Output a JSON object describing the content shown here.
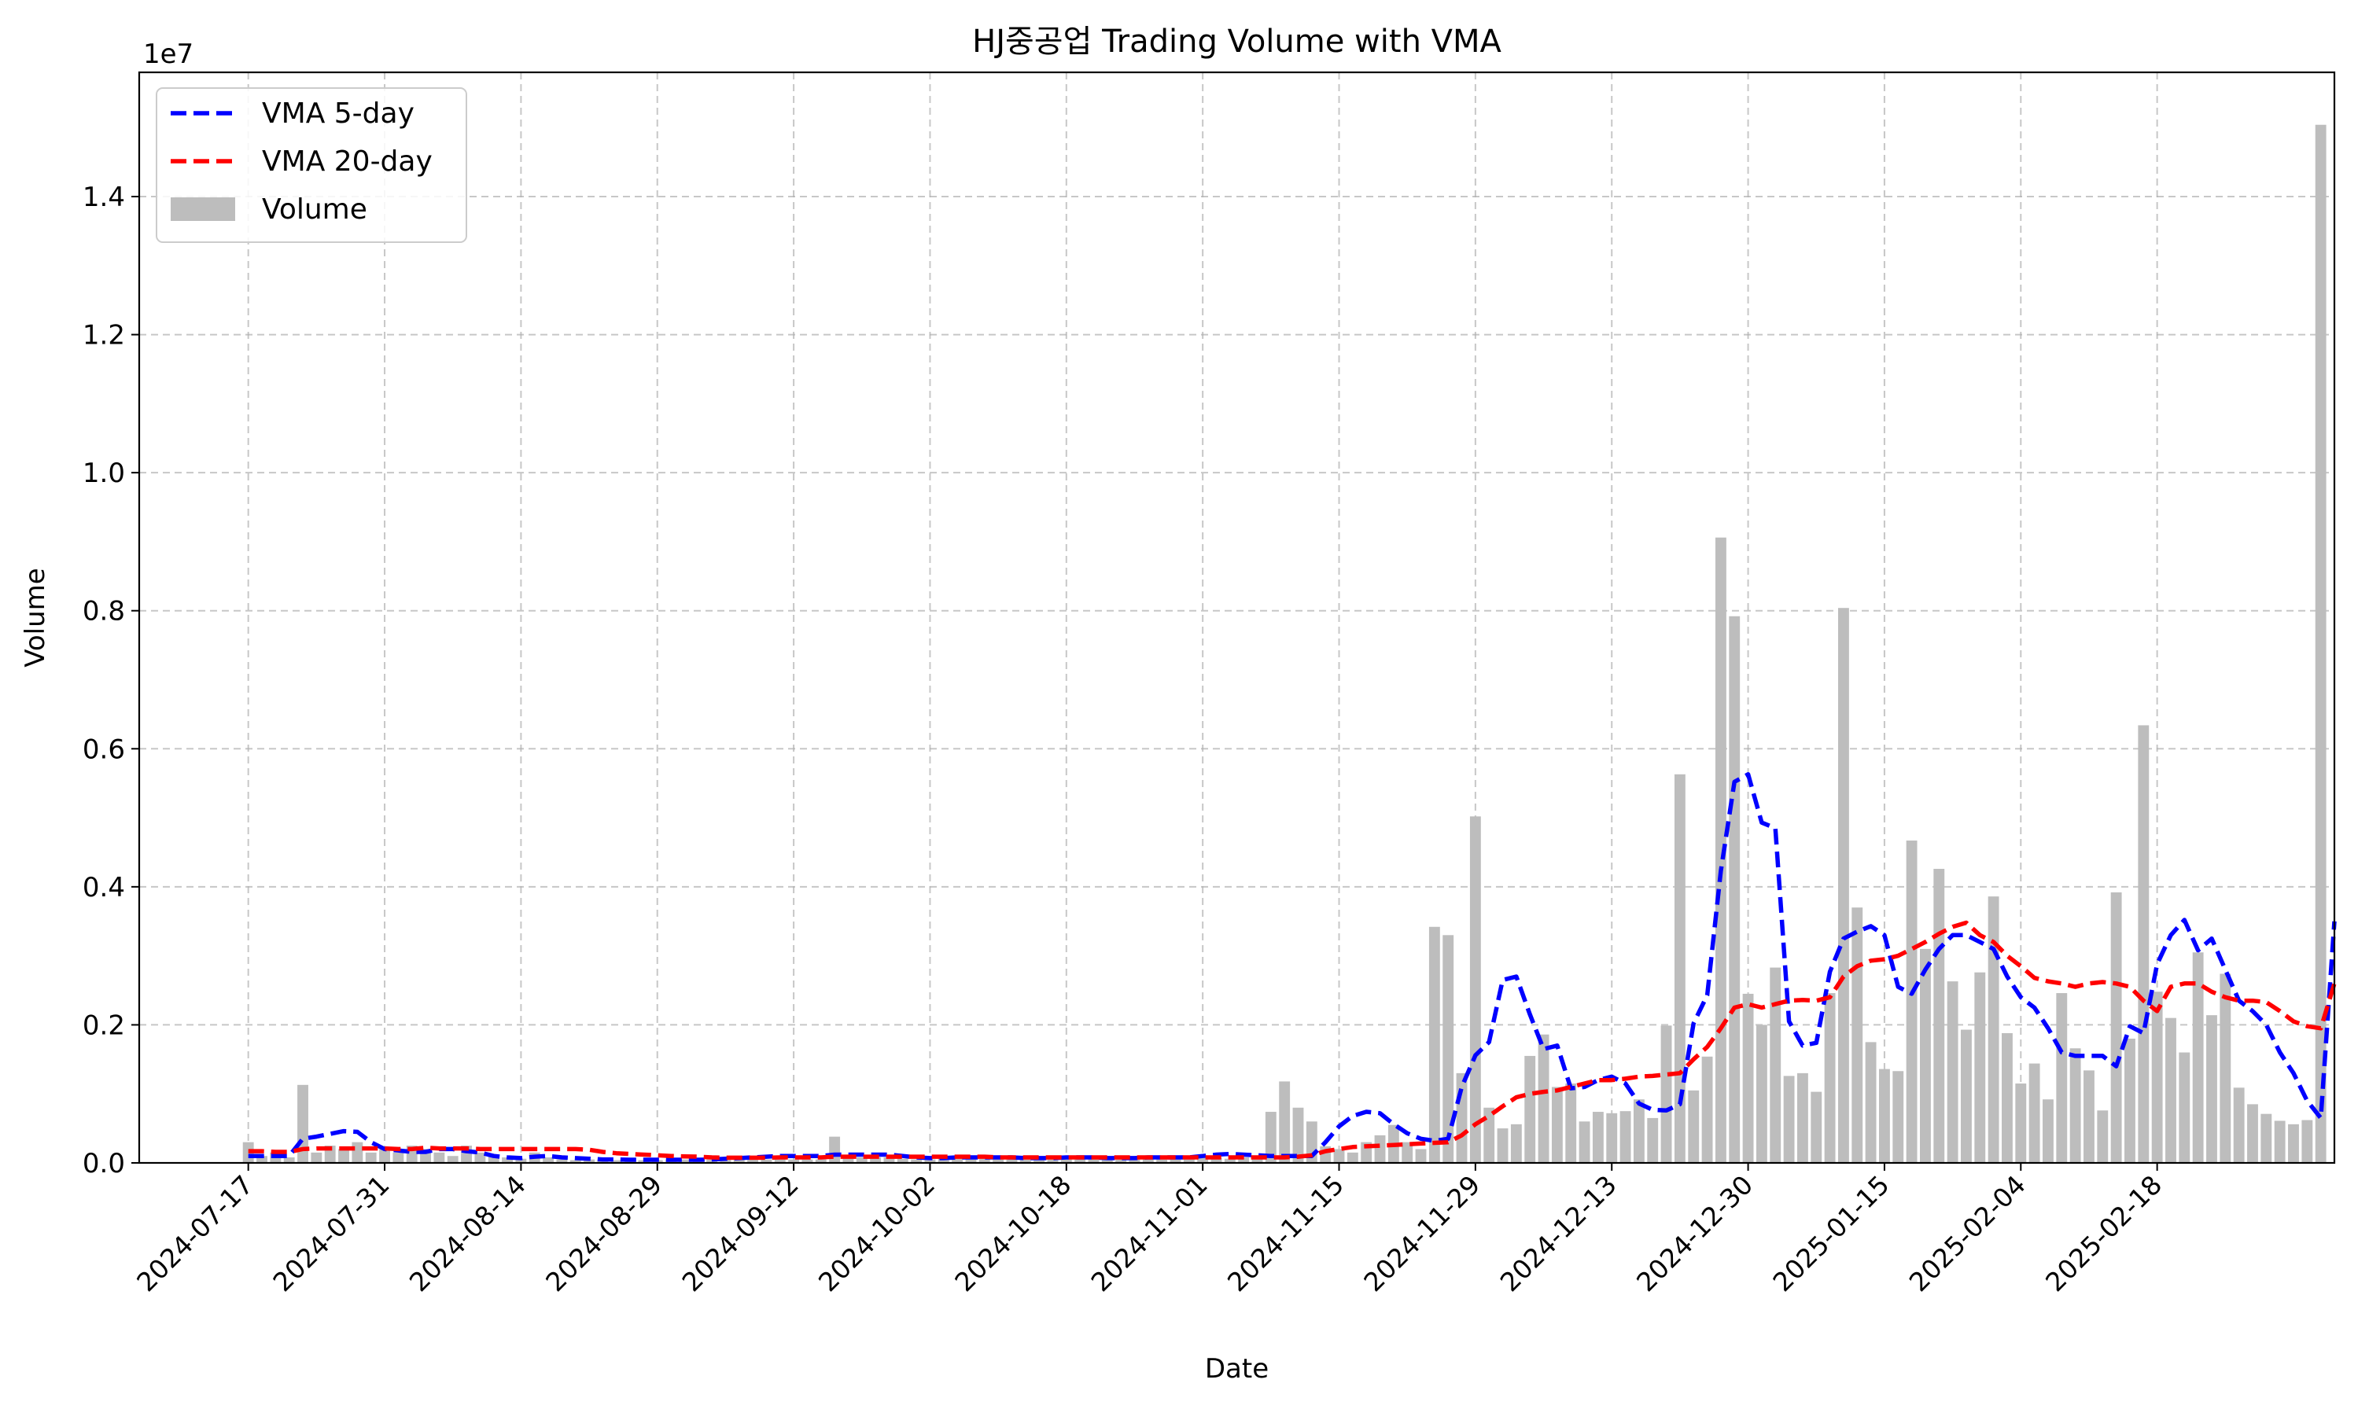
{
  "chart_data": {
    "type": "bar",
    "title": "HJ중공업 Trading Volume with VMA",
    "xlabel": "Date",
    "ylabel": "Volume",
    "y_scale_label": "1e7",
    "ylim": [
      0,
      15800000
    ],
    "y_ticks": [
      0,
      2000000,
      4000000,
      6000000,
      8000000,
      10000000,
      12000000,
      14000000
    ],
    "y_tick_labels": [
      "0.0",
      "0.2",
      "0.4",
      "0.6",
      "0.8",
      "1.0",
      "1.2",
      "1.4"
    ],
    "x_ticks": [
      "2024-07-17",
      "2024-07-31",
      "2024-08-14",
      "2024-08-29",
      "2024-09-12",
      "2024-10-02",
      "2024-10-18",
      "2024-11-01",
      "2024-11-15",
      "2024-11-29",
      "2024-12-13",
      "2024-12-30",
      "2025-01-15",
      "2025-02-04",
      "2025-02-18"
    ],
    "x_tick_index": [
      0,
      10,
      20,
      30,
      40,
      50,
      60,
      70,
      80,
      90,
      100,
      110,
      120,
      130,
      140
    ],
    "x_index_range": [
      -8,
      153
    ],
    "grid": true,
    "legend_position": "top-left",
    "legend": [
      {
        "label": "VMA 5-day",
        "color": "#0000ff",
        "style": "dashed-line"
      },
      {
        "label": "VMA 20-day",
        "color": "#ff0000",
        "style": "dashed-line"
      },
      {
        "label": "Volume",
        "color": "#bdbdbd",
        "style": "bar"
      }
    ],
    "series": [
      {
        "name": "Volume",
        "color": "#bdbdbd",
        "values": [
          300000,
          100000,
          150000,
          80000,
          1130000,
          150000,
          250000,
          200000,
          300000,
          150000,
          200000,
          150000,
          250000,
          200000,
          150000,
          100000,
          250000,
          150000,
          100000,
          80000,
          60000,
          150000,
          80000,
          50000,
          40000,
          50000,
          50000,
          40000,
          40000,
          40000,
          40000,
          50000,
          50000,
          50000,
          50000,
          50000,
          50000,
          50000,
          50000,
          50000,
          50000,
          50000,
          50000,
          380000,
          100000,
          80000,
          80000,
          80000,
          60000,
          50000,
          50000,
          80000,
          80000,
          80000,
          60000,
          60000,
          60000,
          80000,
          80000,
          80000,
          60000,
          60000,
          60000,
          80000,
          80000,
          80000,
          80000,
          60000,
          60000,
          70000,
          80000,
          80000,
          60000,
          80000,
          80000,
          740000,
          1180000,
          800000,
          600000,
          240000,
          200000,
          150000,
          300000,
          400000,
          550000,
          300000,
          200000,
          3420000,
          3300000,
          1300000,
          5020000,
          800000,
          500000,
          560000,
          1550000,
          1860000,
          1100000,
          1150000,
          600000,
          740000,
          720000,
          750000,
          920000,
          650000,
          1990000,
          5630000,
          1050000,
          1540000,
          9060000,
          7920000,
          2450000,
          2000000,
          2830000,
          1260000,
          1300000,
          1030000,
          2460000,
          8040000,
          3700000,
          1750000,
          1360000,
          1330000,
          4670000,
          3100000,
          4260000,
          2630000,
          1930000,
          2760000,
          3860000,
          1880000,
          1150000,
          1440000,
          920000,
          2460000,
          1660000,
          1340000,
          760000,
          3920000,
          1800000,
          6340000,
          2480000,
          2100000,
          1600000,
          3050000,
          2140000,
          2740000,
          1090000,
          850000,
          710000,
          610000,
          560000,
          620000,
          15040000
        ],
        "visible_bar_range": [
          0,
          149
        ]
      },
      {
        "name": "VMA 5-day",
        "color": "#0000ff",
        "values": [
          100000,
          100000,
          100000,
          100000,
          350000,
          380000,
          420000,
          460000,
          450000,
          300000,
          200000,
          180000,
          160000,
          160000,
          200000,
          200000,
          170000,
          150000,
          100000,
          80000,
          70000,
          90000,
          100000,
          80000,
          70000,
          60000,
          50000,
          50000,
          45000,
          45000,
          45000,
          45000,
          45000,
          45000,
          50000,
          60000,
          70000,
          80000,
          90000,
          100000,
          100000,
          100000,
          100000,
          120000,
          120000,
          120000,
          120000,
          120000,
          100000,
          80000,
          70000,
          70000,
          80000,
          80000,
          80000,
          80000,
          80000,
          70000,
          70000,
          70000,
          80000,
          80000,
          80000,
          70000,
          70000,
          70000,
          80000,
          80000,
          80000,
          80000,
          100000,
          120000,
          130000,
          120000,
          110000,
          100000,
          100000,
          100000,
          100000,
          300000,
          530000,
          680000,
          740000,
          720000,
          560000,
          430000,
          350000,
          320000,
          350000,
          1100000,
          1560000,
          1750000,
          2650000,
          2700000,
          2150000,
          1650000,
          1700000,
          1080000,
          1100000,
          1200000,
          1250000,
          1150000,
          860000,
          770000,
          760000,
          850000,
          2020000,
          2430000,
          4230000,
          5520000,
          5630000,
          4930000,
          4850000,
          2050000,
          1700000,
          1740000,
          2770000,
          3250000,
          3350000,
          3430000,
          3300000,
          2550000,
          2450000,
          2800000,
          3100000,
          3300000,
          3300000,
          3200000,
          3100000,
          2700000,
          2400000,
          2250000,
          1950000,
          1600000,
          1550000,
          1550000,
          1550000,
          1400000,
          1980000,
          1880000,
          2880000,
          3300000,
          3520000,
          3080000,
          3250000,
          2800000,
          2350000,
          2200000,
          2000000,
          1600000,
          1300000,
          900000,
          650000,
          3500000
        ],
        "visible_line_range": [
          0,
          149
        ]
      },
      {
        "name": "VMA 20-day",
        "color": "#ff0000",
        "values": [
          170000,
          170000,
          160000,
          160000,
          200000,
          210000,
          210000,
          210000,
          210000,
          210000,
          210000,
          200000,
          200000,
          220000,
          210000,
          210000,
          210000,
          200000,
          200000,
          200000,
          200000,
          200000,
          200000,
          200000,
          200000,
          190000,
          160000,
          140000,
          130000,
          120000,
          110000,
          100000,
          95000,
          90000,
          80000,
          75000,
          75000,
          75000,
          75000,
          80000,
          80000,
          80000,
          80000,
          90000,
          90000,
          90000,
          90000,
          90000,
          90000,
          90000,
          90000,
          90000,
          90000,
          90000,
          90000,
          80000,
          80000,
          80000,
          80000,
          80000,
          80000,
          80000,
          80000,
          80000,
          80000,
          80000,
          80000,
          80000,
          80000,
          80000,
          80000,
          80000,
          80000,
          80000,
          80000,
          80000,
          80000,
          90000,
          110000,
          170000,
          200000,
          230000,
          240000,
          250000,
          260000,
          270000,
          280000,
          290000,
          300000,
          400000,
          560000,
          680000,
          820000,
          950000,
          1000000,
          1030000,
          1050000,
          1100000,
          1150000,
          1200000,
          1200000,
          1220000,
          1250000,
          1260000,
          1280000,
          1300000,
          1500000,
          1680000,
          1950000,
          2250000,
          2300000,
          2250000,
          2300000,
          2350000,
          2360000,
          2350000,
          2400000,
          2700000,
          2850000,
          2930000,
          2950000,
          3000000,
          3100000,
          3200000,
          3320000,
          3420000,
          3480000,
          3300000,
          3200000,
          3000000,
          2850000,
          2680000,
          2630000,
          2600000,
          2550000,
          2600000,
          2620000,
          2600000,
          2550000,
          2350000,
          2200000,
          2550000,
          2600000,
          2600000,
          2480000,
          2400000,
          2350000,
          2350000,
          2330000,
          2200000,
          2050000,
          1980000,
          1950000,
          2600000
        ],
        "visible_line_range": [
          0,
          149
        ]
      }
    ]
  }
}
